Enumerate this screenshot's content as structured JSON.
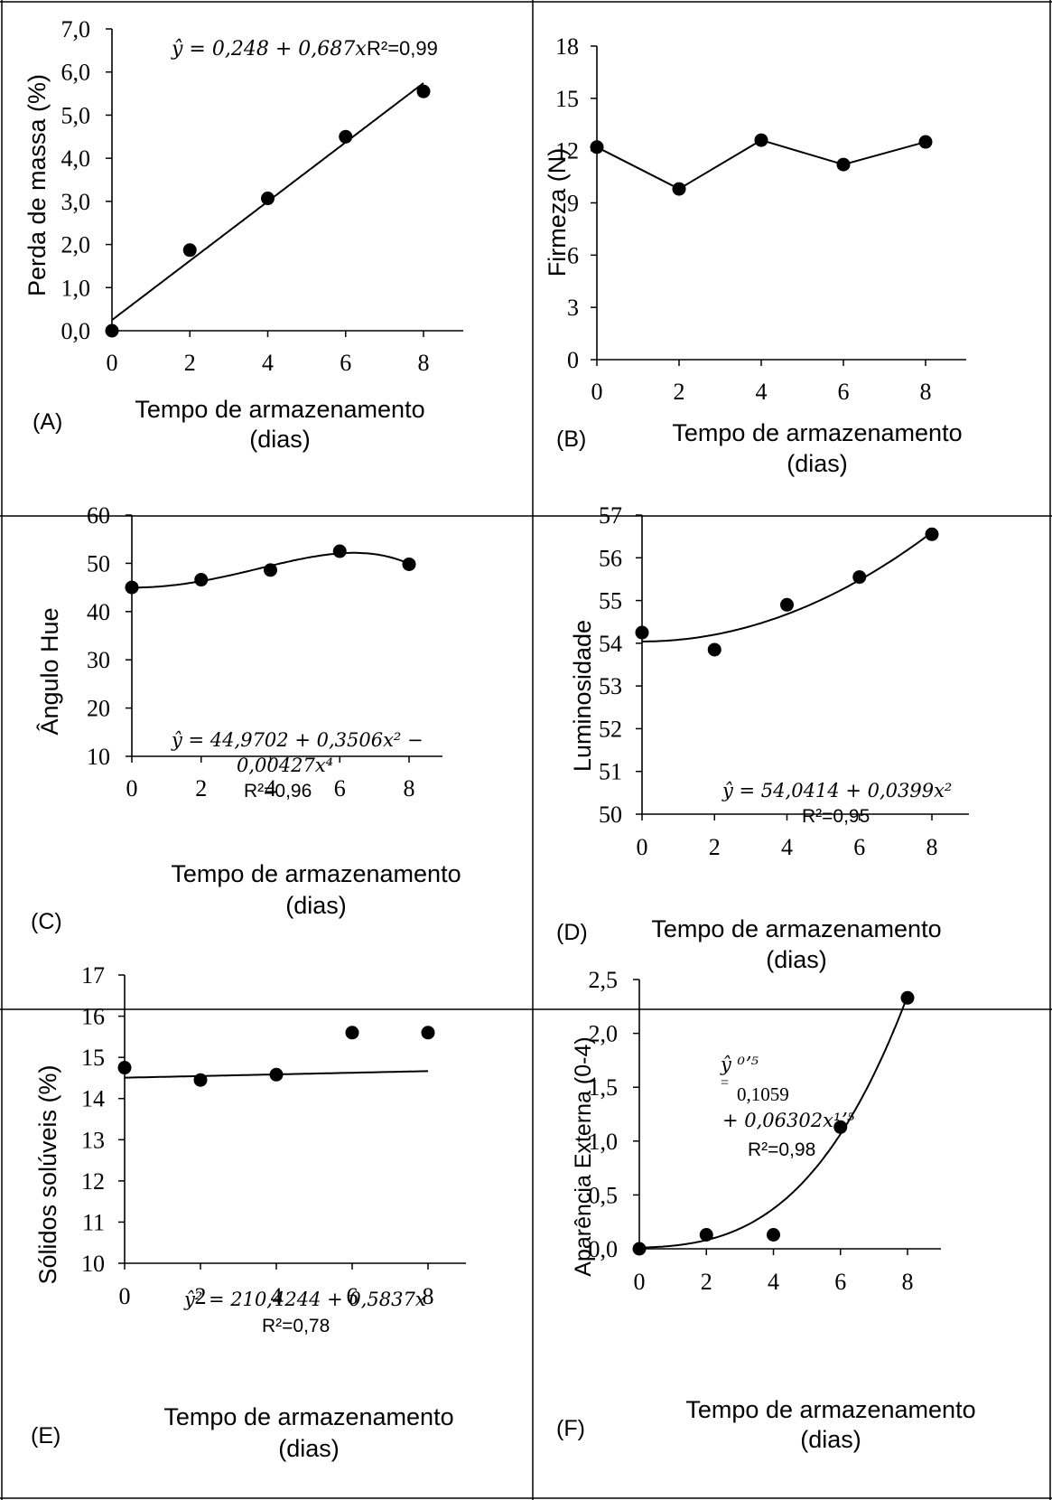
{
  "chart_data": [
    {
      "panel_label": "(A)",
      "type": "scatter",
      "xlabel_line1": "Tempo de armazenamento",
      "xlabel_line2": "(dias)",
      "ylabel": "Perda de massa (%)",
      "xticks": [
        "0",
        "2",
        "4",
        "6",
        "8"
      ],
      "yticks": [
        "0,0",
        "1,0",
        "2,0",
        "3,0",
        "4,0",
        "5,0",
        "6,0",
        "7,0"
      ],
      "xlim": [
        0,
        9
      ],
      "ylim": [
        0,
        7
      ],
      "x": [
        0,
        2,
        4,
        6,
        8
      ],
      "y": [
        0.0,
        1.87,
        3.07,
        4.5,
        5.55
      ],
      "fit": {
        "kind": "linear",
        "coef": [
          0.248,
          0.687
        ]
      },
      "equation": [
        "ŷ = 0,248 + 0,687x",
        "R²=0,99"
      ]
    },
    {
      "panel_label": "(B)",
      "type": "line",
      "xlabel_line1": "Tempo de armazenamento",
      "xlabel_line2": "(dias)",
      "ylabel": "Firmeza (N)",
      "xticks": [
        "0",
        "2",
        "4",
        "6",
        "8"
      ],
      "yticks": [
        "0",
        "3",
        "6",
        "9",
        "12",
        "15",
        "18"
      ],
      "xlim": [
        0,
        9
      ],
      "ylim": [
        0,
        18
      ],
      "x": [
        0,
        2,
        4,
        6,
        8
      ],
      "y": [
        12.2,
        9.8,
        12.6,
        11.2,
        12.5
      ],
      "fit": {
        "kind": "connect"
      },
      "equation": []
    },
    {
      "panel_label": "(C)",
      "type": "scatter",
      "xlabel_line1": "Tempo de armazenamento",
      "xlabel_line2": "(dias)",
      "ylabel": "Ângulo Hue",
      "xticks": [
        "0",
        "2",
        "4",
        "6",
        "8"
      ],
      "yticks": [
        "10",
        "20",
        "30",
        "40",
        "50",
        "60"
      ],
      "xlim": [
        0,
        9
      ],
      "ylim": [
        10,
        60
      ],
      "x": [
        0,
        2,
        4,
        6,
        8
      ],
      "y": [
        45.0,
        46.6,
        48.6,
        52.5,
        49.8
      ],
      "fit": {
        "kind": "poly",
        "terms": [
          [
            0,
            44.9702
          ],
          [
            2,
            0.3506
          ],
          [
            4,
            -0.00427
          ]
        ]
      },
      "equation": [
        "ŷ = 44,9702 + 0,3506x² −",
        "0,00427x⁴",
        "R²=0,96"
      ]
    },
    {
      "panel_label": "(D)",
      "type": "scatter",
      "xlabel_line1": "Tempo de armazenamento",
      "xlabel_line2": "(dias)",
      "ylabel": "Luminosidade",
      "xticks": [
        "0",
        "2",
        "4",
        "6",
        "8"
      ],
      "yticks": [
        "50",
        "51",
        "52",
        "53",
        "54",
        "55",
        "56",
        "57"
      ],
      "xlim": [
        0,
        9
      ],
      "ylim": [
        50,
        57
      ],
      "x": [
        0,
        2,
        4,
        6,
        8
      ],
      "y": [
        54.25,
        53.85,
        54.9,
        55.55,
        56.55
      ],
      "fit": {
        "kind": "poly",
        "terms": [
          [
            0,
            54.0414
          ],
          [
            2,
            0.0399
          ]
        ]
      },
      "equation": [
        "ŷ = 54,0414 + 0,0399x²",
        "R²=0,95"
      ]
    },
    {
      "panel_label": "(E)",
      "type": "scatter",
      "xlabel_line1": "Tempo de armazenamento",
      "xlabel_line2": "(dias)",
      "ylabel": "Sólidos solúveis (%)",
      "xticks": [
        "0",
        "2",
        "4",
        "6",
        "8"
      ],
      "yticks": [
        "10",
        "11",
        "12",
        "13",
        "14",
        "15",
        "16",
        "17"
      ],
      "xlim": [
        0,
        9
      ],
      "ylim": [
        10,
        17
      ],
      "x": [
        0,
        2,
        4,
        6,
        8
      ],
      "y": [
        14.75,
        14.45,
        14.58,
        15.6,
        15.6
      ],
      "fit": {
        "kind": "sqrt_linear",
        "coef": [
          210.4244,
          0.5837
        ]
      },
      "equation": [
        "ŷ² = 210,4244 + 0,5837x",
        "R²=0,78"
      ]
    },
    {
      "panel_label": "(F)",
      "type": "scatter",
      "xlabel_line1": "Tempo de armazenamento",
      "xlabel_line2": "(dias)",
      "ylabel": "Aparência Externa (0-4)",
      "xticks": [
        "0",
        "2",
        "4",
        "6",
        "8"
      ],
      "yticks": [
        "0,0",
        "0,5",
        "1,0",
        "1,5",
        "2,0",
        "2,5"
      ],
      "xlim": [
        0,
        9
      ],
      "ylim": [
        0,
        2.5
      ],
      "x": [
        0,
        2,
        4,
        6,
        8
      ],
      "y": [
        0.0,
        0.13,
        0.13,
        1.13,
        2.33
      ],
      "fit": {
        "kind": "square_power",
        "coef": [
          0.1059,
          0.06302,
          1.5
        ]
      },
      "equation": [
        "ŷ ⁰ʼ⁵",
        "=",
        "0,1059",
        "+ 0,06302x¹ʼ⁵",
        "R²=0,98"
      ]
    }
  ]
}
